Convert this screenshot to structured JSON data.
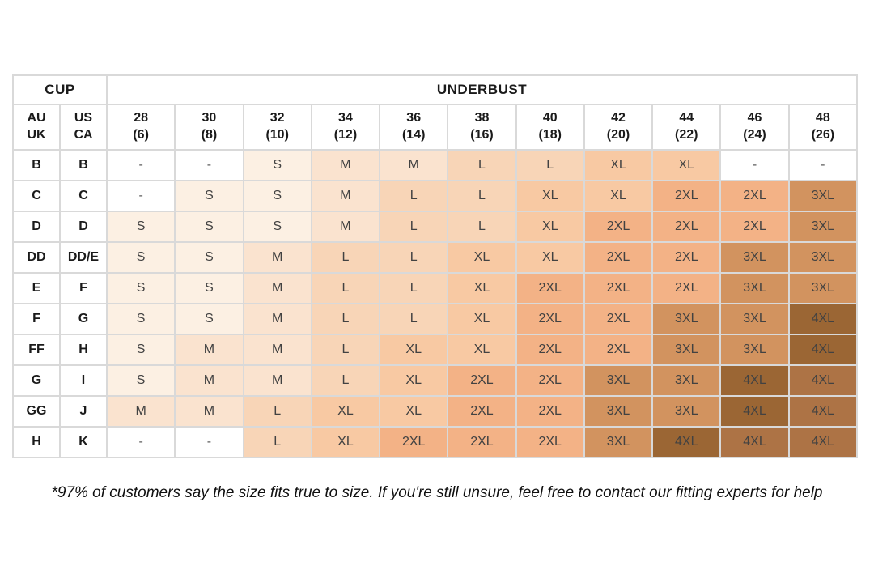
{
  "page": {
    "footnote": "*97% of customers say the size fits true to size. If you're still unsure, feel free to contact our fitting experts for help"
  },
  "table": {
    "cup_header": "CUP",
    "underbust_header": "UNDERBUST",
    "cup_subheaders": [
      {
        "line1": "AU",
        "line2": "UK"
      },
      {
        "line1": "US",
        "line2": "CA"
      }
    ],
    "band_headers": [
      {
        "size": "28",
        "alt": "(6)"
      },
      {
        "size": "30",
        "alt": "(8)"
      },
      {
        "size": "32",
        "alt": "(10)"
      },
      {
        "size": "34",
        "alt": "(12)"
      },
      {
        "size": "36",
        "alt": "(14)"
      },
      {
        "size": "38",
        "alt": "(16)"
      },
      {
        "size": "40",
        "alt": "(18)"
      },
      {
        "size": "42",
        "alt": "(20)"
      },
      {
        "size": "44",
        "alt": "(22)"
      },
      {
        "size": "46",
        "alt": "(24)"
      },
      {
        "size": "48",
        "alt": "(26)"
      }
    ],
    "rows": [
      {
        "au_uk": "B",
        "us_ca": "B",
        "sizes": [
          "-",
          "-",
          "S",
          "M",
          "M",
          "L",
          "L",
          "XL",
          "XL",
          "-",
          "-"
        ]
      },
      {
        "au_uk": "C",
        "us_ca": "C",
        "sizes": [
          "-",
          "S",
          "S",
          "M",
          "L",
          "L",
          "XL",
          "XL",
          "2XL",
          "2XL",
          "3XL"
        ]
      },
      {
        "au_uk": "D",
        "us_ca": "D",
        "sizes": [
          "S",
          "S",
          "S",
          "M",
          "L",
          "L",
          "XL",
          "2XL",
          "2XL",
          "2XL",
          "3XL"
        ]
      },
      {
        "au_uk": "DD",
        "us_ca": "DD/E",
        "sizes": [
          "S",
          "S",
          "M",
          "L",
          "L",
          "XL",
          "XL",
          "2XL",
          "2XL",
          "3XL",
          "3XL"
        ]
      },
      {
        "au_uk": "E",
        "us_ca": "F",
        "sizes": [
          "S",
          "S",
          "M",
          "L",
          "L",
          "XL",
          "2XL",
          "2XL",
          "2XL",
          "3XL",
          "3XL"
        ]
      },
      {
        "au_uk": "F",
        "us_ca": "G",
        "sizes": [
          "S",
          "S",
          "M",
          "L",
          "L",
          "XL",
          "2XL",
          "2XL",
          "3XL",
          "3XL",
          "4XL"
        ]
      },
      {
        "au_uk": "FF",
        "us_ca": "H",
        "sizes": [
          "S",
          "M",
          "M",
          "L",
          "XL",
          "XL",
          "2XL",
          "2XL",
          "3XL",
          "3XL",
          "4XL"
        ]
      },
      {
        "au_uk": "G",
        "us_ca": "I",
        "sizes": [
          "S",
          "M",
          "M",
          "L",
          "XL",
          "2XL",
          "2XL",
          "3XL",
          "3XL",
          "4XL",
          "4XL"
        ]
      },
      {
        "au_uk": "GG",
        "us_ca": "J",
        "sizes": [
          "M",
          "M",
          "L",
          "XL",
          "XL",
          "2XL",
          "2XL",
          "3XL",
          "3XL",
          "4XL",
          "4XL"
        ]
      },
      {
        "au_uk": "H",
        "us_ca": "K",
        "sizes": [
          "-",
          "-",
          "L",
          "XL",
          "2XL",
          "2XL",
          "2XL",
          "3XL",
          "4XL",
          "4XL",
          "4XL"
        ]
      }
    ],
    "size_colors": {
      "-": "#ffffff",
      "S": "#fcf0e3",
      "M": "#fae3cf",
      "L": "#f8d5b7",
      "XL": "#f8c9a3",
      "2XL": "#f3b286",
      "3XL": "#d2935f",
      "4XL": "#ad7345",
      "4XL_first": "#9b6634"
    }
  }
}
